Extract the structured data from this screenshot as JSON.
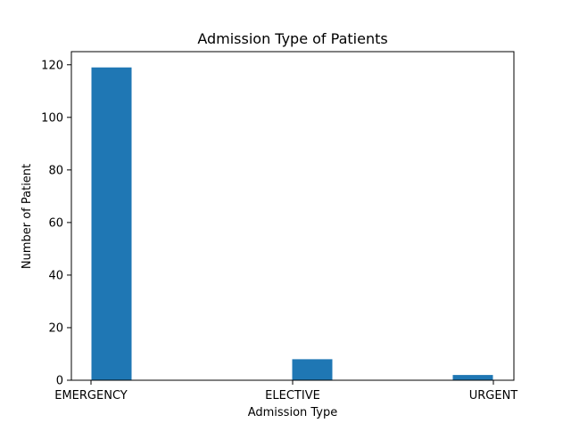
{
  "chart_data": {
    "type": "bar",
    "title": "Admission Type of Patients",
    "xlabel": "Admission Type",
    "ylabel": "Number of Patient",
    "categories": [
      "EMERGENCY",
      "ELECTIVE",
      "URGENT"
    ],
    "values": [
      119,
      8,
      2
    ],
    "ylim": [
      0,
      125
    ],
    "yticks": [
      0,
      20,
      40,
      60,
      80,
      100,
      120
    ],
    "grid": false,
    "legend": "none",
    "bar_color": "#1f77b4"
  }
}
